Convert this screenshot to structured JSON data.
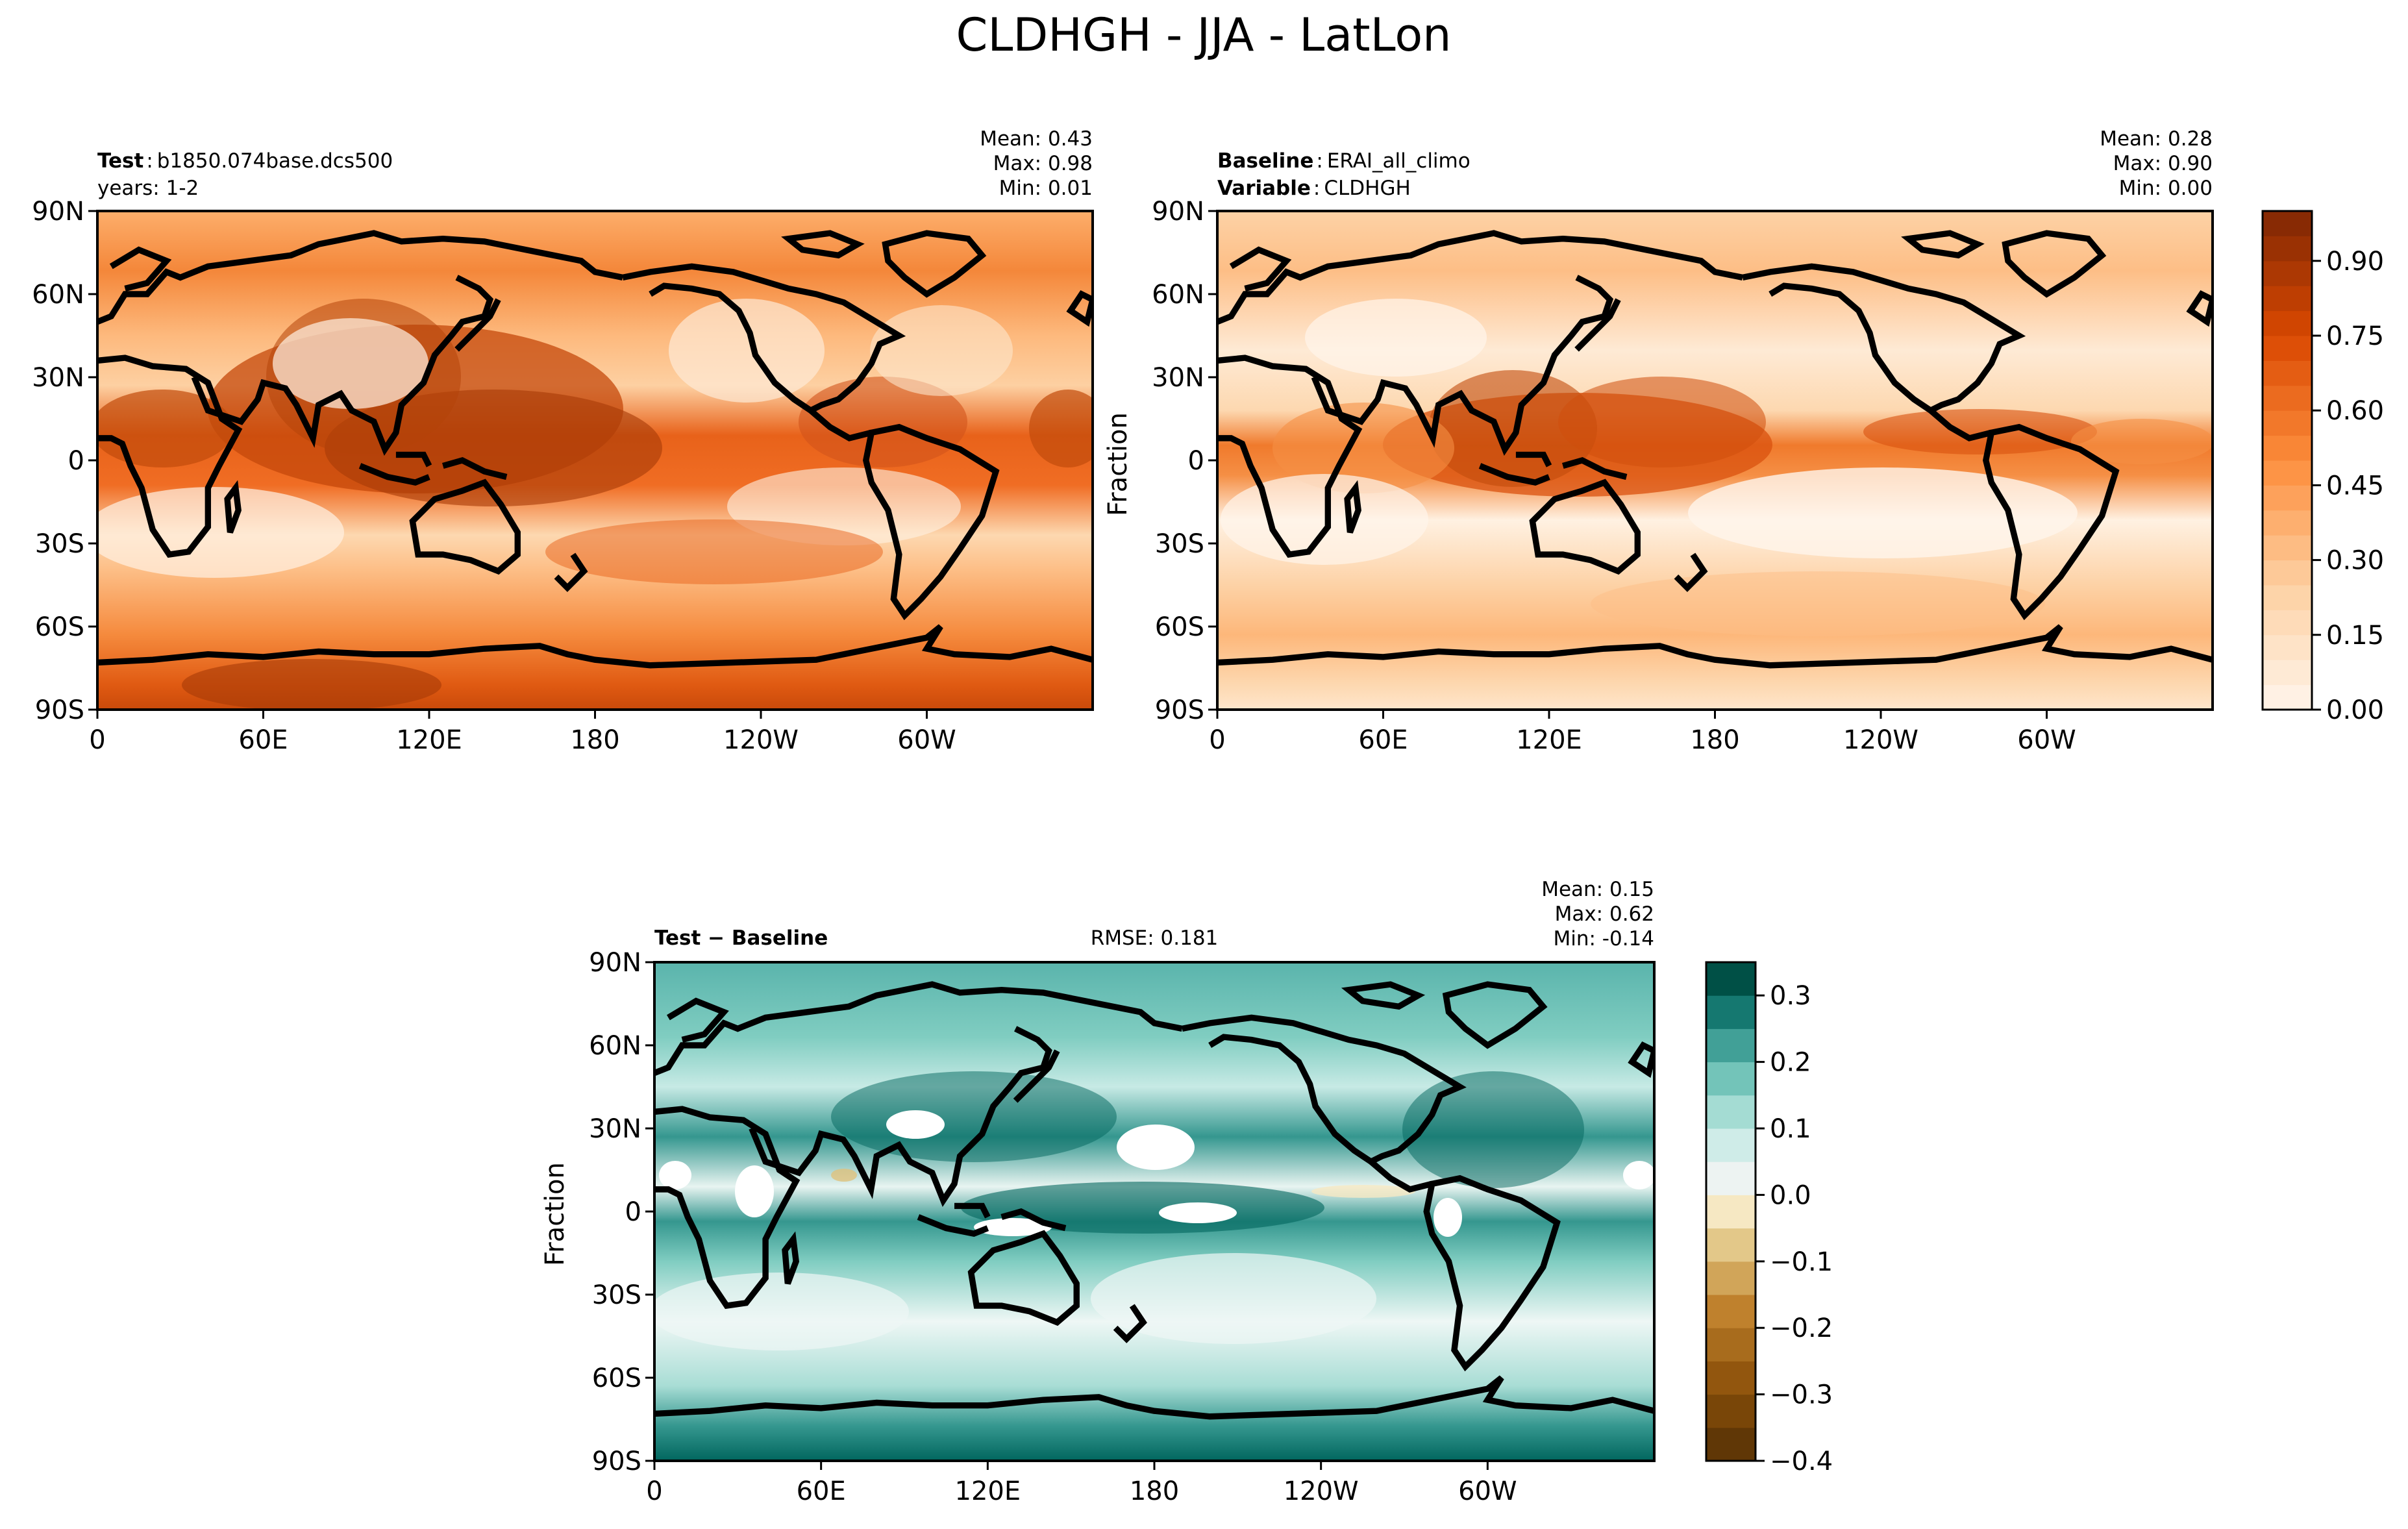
{
  "figure": {
    "title": "CLDHGH - JJA - LatLon"
  },
  "axes": {
    "lat_ticks": [
      "90N",
      "60N",
      "30N",
      "0",
      "30S",
      "60S",
      "90S"
    ],
    "lon_ticks": [
      "0",
      "60E",
      "120E",
      "180",
      "120W",
      "60W"
    ],
    "lon_tick_values": [
      0,
      60,
      120,
      180,
      240,
      300
    ],
    "lat_tick_values": [
      90,
      60,
      30,
      0,
      -30,
      -60,
      -90
    ]
  },
  "panels": {
    "test": {
      "name_label": "Test",
      "name_value": "b1850.074base.dcs500",
      "years_label": "years: 1-2",
      "stats": {
        "mean": "Mean:  0.43",
        "max": "Max:  0.98",
        "min": "Min:  0.01"
      }
    },
    "baseline": {
      "name_label": "Baseline",
      "name_value": "ERAI_all_climo",
      "variable_label": "Variable",
      "variable_value": "CLDHGH",
      "ylabel": "Fraction",
      "stats": {
        "mean": "Mean:  0.28",
        "max": "Max:  0.90",
        "min": "Min:  0.00"
      }
    },
    "diff": {
      "name_label": "Test − Baseline",
      "rmse": "RMSE: 0.181",
      "ylabel": "Fraction",
      "stats": {
        "mean": "Mean:  0.15",
        "max": "Max:  0.62",
        "min": "Min: -0.14"
      }
    }
  },
  "colorbars": {
    "main": {
      "ticks": [
        "0.00",
        "0.15",
        "0.30",
        "0.45",
        "0.60",
        "0.75",
        "0.90"
      ],
      "tick_values": [
        0,
        0.15,
        0.3,
        0.45,
        0.6,
        0.75,
        0.9
      ],
      "range": [
        0,
        1.0
      ],
      "levels": 20
    },
    "diff": {
      "ticks": [
        "−0.4",
        "−0.3",
        "−0.2",
        "−0.1",
        "0.0",
        "0.1",
        "0.2",
        "0.3"
      ],
      "tick_values": [
        -0.4,
        -0.3,
        -0.2,
        -0.1,
        0,
        0.1,
        0.2,
        0.3
      ],
      "range": [
        -0.4,
        0.35
      ],
      "levels": 15
    }
  },
  "colors": {
    "oranges_light": "#fff5eb",
    "oranges_dark": "#7f2704",
    "brbg_negative_dark": "#543005",
    "brbg_positive_dark": "#003c30",
    "neutral": "#f5f5f5"
  },
  "chart_data": [
    {
      "type": "heatmap",
      "title": "Test: b1850.074base.dcs500 (years: 1-2)",
      "variable": "CLDHGH",
      "units": "Fraction",
      "x": "longitude",
      "y": "latitude",
      "xlim": [
        0,
        360
      ],
      "ylim": [
        -90,
        90
      ],
      "stats": {
        "mean": 0.43,
        "max": 0.98,
        "min": 0.01
      },
      "zlim": [
        0,
        1.0
      ]
    },
    {
      "type": "heatmap",
      "title": "Baseline: ERAI_all_climo",
      "variable": "CLDHGH",
      "units": "Fraction",
      "x": "longitude",
      "y": "latitude",
      "xlim": [
        0,
        360
      ],
      "ylim": [
        -90,
        90
      ],
      "stats": {
        "mean": 0.28,
        "max": 0.9,
        "min": 0.0
      },
      "zlim": [
        0,
        1.0
      ]
    },
    {
      "type": "heatmap",
      "title": "Test − Baseline",
      "variable": "CLDHGH",
      "units": "Fraction",
      "x": "longitude",
      "y": "latitude",
      "xlim": [
        0,
        360
      ],
      "ylim": [
        -90,
        90
      ],
      "stats": {
        "mean": 0.15,
        "max": 0.62,
        "min": -0.14,
        "rmse": 0.181
      },
      "zlim": [
        -0.4,
        0.35
      ]
    }
  ]
}
